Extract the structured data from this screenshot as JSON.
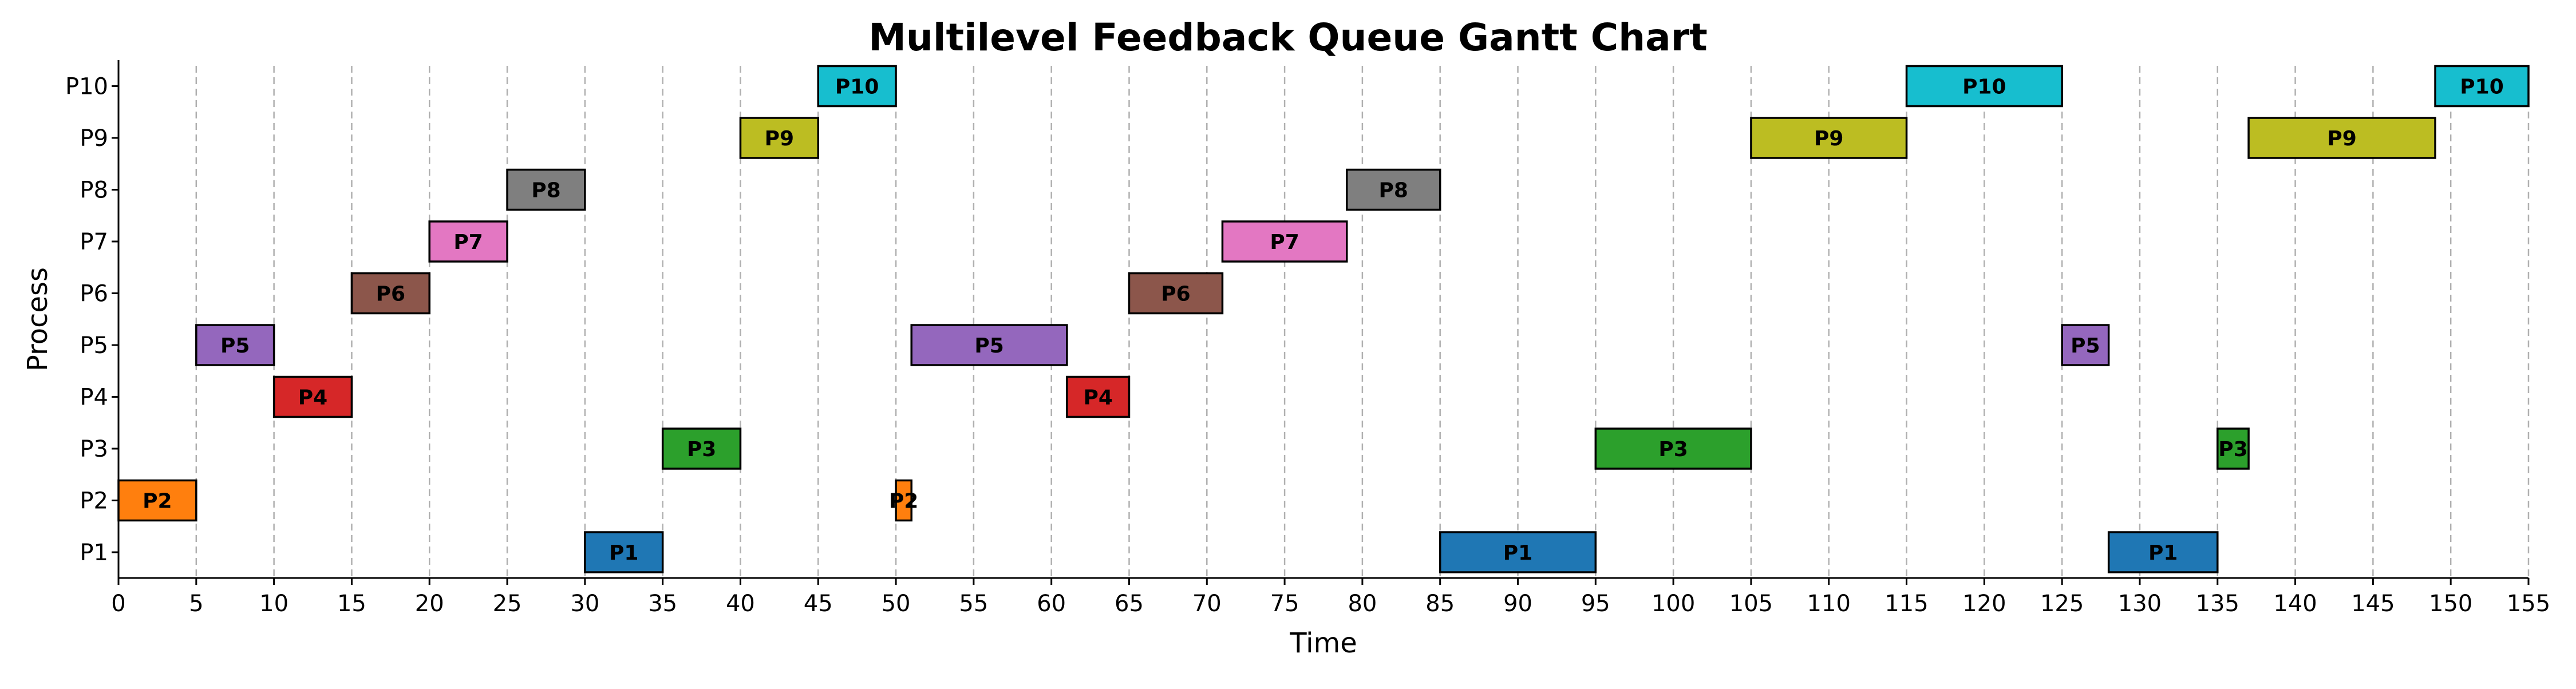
{
  "chart_data": {
    "type": "gantt",
    "title": "Multilevel Feedback Queue Gantt Chart",
    "xlabel": "Time",
    "ylabel": "Process",
    "xlim": [
      0,
      155
    ],
    "x_ticks": [
      0,
      5,
      10,
      15,
      20,
      25,
      30,
      35,
      40,
      45,
      50,
      55,
      60,
      65,
      70,
      75,
      80,
      85,
      90,
      95,
      100,
      105,
      110,
      115,
      120,
      125,
      130,
      135,
      140,
      145,
      150,
      155
    ],
    "categories": [
      "P1",
      "P2",
      "P3",
      "P4",
      "P5",
      "P6",
      "P7",
      "P8",
      "P9",
      "P10"
    ],
    "grid": "vertical dashed",
    "legend": "none",
    "colors": {
      "P1": "#1f77b4",
      "P2": "#ff7f0e",
      "P3": "#2ca02c",
      "P4": "#d62728",
      "P5": "#9467bd",
      "P6": "#8c564b",
      "P7": "#e377c2",
      "P8": "#7f7f7f",
      "P9": "#bcbd22",
      "P10": "#17becf"
    },
    "tasks": [
      {
        "process": "P2",
        "start": 0,
        "end": 5
      },
      {
        "process": "P5",
        "start": 5,
        "end": 10
      },
      {
        "process": "P4",
        "start": 10,
        "end": 15
      },
      {
        "process": "P6",
        "start": 15,
        "end": 20
      },
      {
        "process": "P7",
        "start": 20,
        "end": 25
      },
      {
        "process": "P8",
        "start": 25,
        "end": 30
      },
      {
        "process": "P1",
        "start": 30,
        "end": 35
      },
      {
        "process": "P3",
        "start": 35,
        "end": 40
      },
      {
        "process": "P9",
        "start": 40,
        "end": 45
      },
      {
        "process": "P10",
        "start": 45,
        "end": 50
      },
      {
        "process": "P2",
        "start": 50,
        "end": 51
      },
      {
        "process": "P5",
        "start": 51,
        "end": 61
      },
      {
        "process": "P4",
        "start": 61,
        "end": 65
      },
      {
        "process": "P6",
        "start": 65,
        "end": 71
      },
      {
        "process": "P7",
        "start": 71,
        "end": 79
      },
      {
        "process": "P8",
        "start": 79,
        "end": 85
      },
      {
        "process": "P1",
        "start": 85,
        "end": 95
      },
      {
        "process": "P3",
        "start": 95,
        "end": 105
      },
      {
        "process": "P9",
        "start": 105,
        "end": 115
      },
      {
        "process": "P10",
        "start": 115,
        "end": 125
      },
      {
        "process": "P5",
        "start": 125,
        "end": 128
      },
      {
        "process": "P1",
        "start": 128,
        "end": 135
      },
      {
        "process": "P3",
        "start": 135,
        "end": 137
      },
      {
        "process": "P9",
        "start": 137,
        "end": 149
      },
      {
        "process": "P10",
        "start": 149,
        "end": 155
      }
    ]
  }
}
